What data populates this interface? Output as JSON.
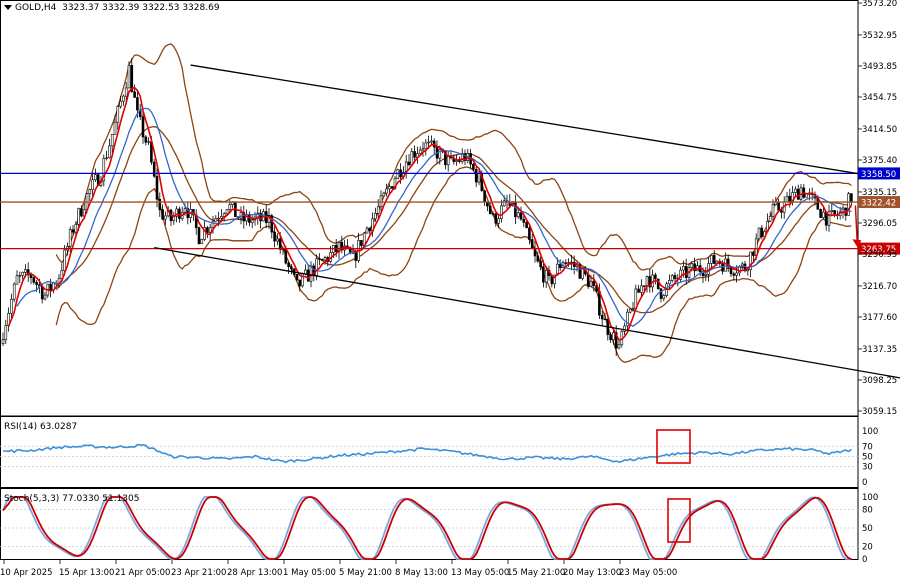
{
  "header": {
    "symbol": "GOLD,H4",
    "ohlc": "3323.37 3332.39 3322.53 3328.69"
  },
  "colors": {
    "candle": "#000000",
    "bb": "#8B4513",
    "ma_fast": "#e00000",
    "ma_slow": "#3366cc",
    "level_blue": "#0000cc",
    "level_red": "#cc0000",
    "level_brown": "#a0522d",
    "rsi": "#3b8fdc",
    "stoch_main": "#7ea6e0",
    "stoch_signal": "#cc0000",
    "marker": "#e00000"
  },
  "chart_data": [
    {
      "type": "candlestick",
      "title": "GOLD,H4",
      "ylim": [
        3059.15,
        3573.2
      ],
      "y_ticks": [
        "3573.20",
        "3532.95",
        "3493.85",
        "3454.75",
        "3414.50",
        "3375.40",
        "3335.15",
        "3296.05",
        "3256.95",
        "3216.70",
        "3177.60",
        "3137.35",
        "3098.25",
        "3059.15"
      ],
      "x_ticks": [
        "10 Apr 2025",
        "15 Apr 13:00",
        "21 Apr 05:00",
        "23 Apr 21:00",
        "28 Apr 13:00",
        "1 May 05:00",
        "5 May 21:00",
        "8 May 13:00",
        "13 May 05:00",
        "15 May 21:00",
        "20 May 13:00",
        "23 May 05:00"
      ],
      "close_anchors": [
        [
          0,
          3160
        ],
        [
          5,
          3225
        ],
        [
          10,
          3230
        ],
        [
          15,
          3205
        ],
        [
          20,
          3230
        ],
        [
          25,
          3290
        ],
        [
          30,
          3330
        ],
        [
          35,
          3360
        ],
        [
          40,
          3420
        ],
        [
          45,
          3490
        ],
        [
          48,
          3430
        ],
        [
          52,
          3390
        ],
        [
          56,
          3310
        ],
        [
          60,
          3300
        ],
        [
          65,
          3320
        ],
        [
          70,
          3280
        ],
        [
          75,
          3300
        ],
        [
          80,
          3320
        ],
        [
          85,
          3300
        ],
        [
          90,
          3300
        ],
        [
          95,
          3300
        ],
        [
          100,
          3255
        ],
        [
          105,
          3215
        ],
        [
          110,
          3235
        ],
        [
          115,
          3250
        ],
        [
          120,
          3265
        ],
        [
          125,
          3250
        ],
        [
          130,
          3290
        ],
        [
          135,
          3320
        ],
        [
          140,
          3355
        ],
        [
          145,
          3380
        ],
        [
          150,
          3395
        ],
        [
          155,
          3385
        ],
        [
          160,
          3370
        ],
        [
          165,
          3380
        ],
        [
          170,
          3350
        ],
        [
          175,
          3300
        ],
        [
          180,
          3320
        ],
        [
          185,
          3300
        ],
        [
          190,
          3250
        ],
        [
          195,
          3220
        ],
        [
          200,
          3250
        ],
        [
          205,
          3240
        ],
        [
          210,
          3220
        ],
        [
          215,
          3170
        ],
        [
          220,
          3140
        ],
        [
          225,
          3195
        ],
        [
          230,
          3230
        ],
        [
          235,
          3210
        ],
        [
          240,
          3225
        ],
        [
          245,
          3235
        ],
        [
          250,
          3240
        ],
        [
          255,
          3250
        ],
        [
          260,
          3240
        ],
        [
          265,
          3240
        ],
        [
          270,
          3280
        ],
        [
          275,
          3310
        ],
        [
          280,
          3322
        ],
        [
          285,
          3340
        ],
        [
          290,
          3320
        ],
        [
          295,
          3300
        ],
        [
          300,
          3310
        ],
        [
          303,
          3328.69
        ]
      ],
      "price_levels": [
        {
          "value": 3358.5,
          "label": "3358.50",
          "color": "#0000cc"
        },
        {
          "value": 3322.42,
          "label": "3322.42",
          "color": "#a0522d"
        },
        {
          "value": 3263.75,
          "label": "3263.75",
          "color": "#cc0000"
        }
      ],
      "trend_lines": [
        {
          "name": "upper-channel",
          "from": [
            67,
            3495
          ],
          "to": [
            311,
            3355
          ]
        },
        {
          "name": "lower-channel",
          "from": [
            54,
            3265
          ],
          "to": [
            351,
            3082
          ]
        }
      ]
    },
    {
      "type": "line",
      "title": "RSI(14) 63.0287",
      "ylim": [
        0,
        100
      ],
      "y_ticks": [
        "100",
        "70",
        "50",
        "30",
        "0"
      ],
      "anchors": [
        [
          0,
          60
        ],
        [
          10,
          62
        ],
        [
          20,
          68
        ],
        [
          30,
          70
        ],
        [
          40,
          68
        ],
        [
          50,
          72
        ],
        [
          55,
          62
        ],
        [
          60,
          50
        ],
        [
          70,
          48
        ],
        [
          80,
          45
        ],
        [
          90,
          50
        ],
        [
          100,
          40
        ],
        [
          110,
          45
        ],
        [
          120,
          52
        ],
        [
          130,
          55
        ],
        [
          140,
          60
        ],
        [
          150,
          65
        ],
        [
          160,
          60
        ],
        [
          170,
          52
        ],
        [
          180,
          45
        ],
        [
          190,
          48
        ],
        [
          200,
          45
        ],
        [
          210,
          50
        ],
        [
          220,
          40
        ],
        [
          230,
          48
        ],
        [
          240,
          55
        ],
        [
          250,
          58
        ],
        [
          260,
          55
        ],
        [
          270,
          62
        ],
        [
          280,
          65
        ],
        [
          290,
          62
        ],
        [
          295,
          55
        ],
        [
          303,
          63.03
        ]
      ]
    },
    {
      "type": "line",
      "title": "Stoch(5,3,3) 77.0330 51.1305",
      "ylim": [
        0,
        100
      ],
      "y_ticks": [
        "100",
        "80",
        "50",
        "20",
        "0"
      ]
    }
  ]
}
